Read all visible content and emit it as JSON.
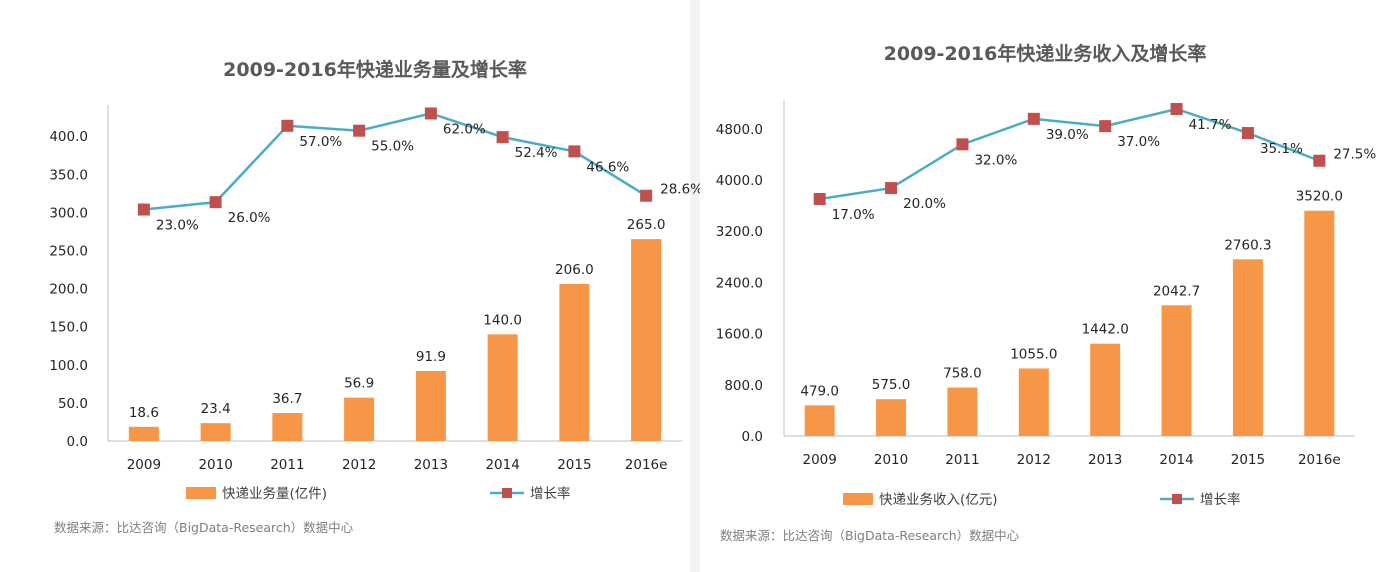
{
  "colors": {
    "bar": "#f79646",
    "line": "#4bacc6",
    "marker": "#c0504d",
    "axis": "#bfbfbf"
  },
  "chart_data": [
    {
      "type": "bar",
      "title": "2009-2016年快递业务量及增长率",
      "categories": [
        "2009",
        "2010",
        "2011",
        "2012",
        "2013",
        "2014",
        "2015",
        "2016e"
      ],
      "y_ticks": [
        "0.0",
        "50.0",
        "100.0",
        "150.0",
        "200.0",
        "250.0",
        "300.0",
        "350.0",
        "400.0"
      ],
      "ylim": [
        0,
        420
      ],
      "series": [
        {
          "name": "快递业务量(亿件)",
          "type": "bar",
          "values": [
            18.6,
            23.4,
            36.7,
            56.9,
            91.9,
            140.0,
            206.0,
            265.0
          ],
          "labels": [
            "18.6",
            "23.4",
            "36.7",
            "56.9",
            "91.9",
            "140.0",
            "206.0",
            "265.0"
          ]
        },
        {
          "name": "增长率",
          "type": "line",
          "values": [
            23.0,
            26.0,
            57.0,
            55.0,
            62.0,
            52.4,
            46.6,
            28.6
          ],
          "labels": [
            "23.0%",
            "26.0%",
            "57.0%",
            "55.0%",
            "62.0%",
            "52.4%",
            "46.6%",
            "28.6%"
          ]
        }
      ],
      "source": "数据来源：比达咨询（BigData-Research）数据中心"
    },
    {
      "type": "bar",
      "title": "2009-2016年快递业务收入及增长率",
      "categories": [
        "2009",
        "2010",
        "2011",
        "2012",
        "2013",
        "2014",
        "2015",
        "2016e"
      ],
      "y_ticks": [
        "0.0",
        "800.0",
        "1600.0",
        "2400.0",
        "3200.0",
        "4000.0",
        "4800.0"
      ],
      "ylim": [
        0,
        5000
      ],
      "series": [
        {
          "name": "快递业务收入(亿元)",
          "type": "bar",
          "values": [
            479.0,
            575.0,
            758.0,
            1055.0,
            1442.0,
            2042.7,
            2760.3,
            3520.0
          ],
          "labels": [
            "479.0",
            "575.0",
            "758.0",
            "1055.0",
            "1442.0",
            "2042.7",
            "2760.3",
            "3520.0"
          ]
        },
        {
          "name": "增长率",
          "type": "line",
          "values": [
            17.0,
            20.0,
            32.0,
            39.0,
            37.0,
            41.7,
            35.1,
            27.5
          ],
          "labels": [
            "17.0%",
            "20.0%",
            "32.0%",
            "39.0%",
            "37.0%",
            "41.7%",
            "35.1%",
            "27.5%"
          ]
        }
      ],
      "source": "数据来源：比达咨询（BigData-Research）数据中心"
    }
  ]
}
